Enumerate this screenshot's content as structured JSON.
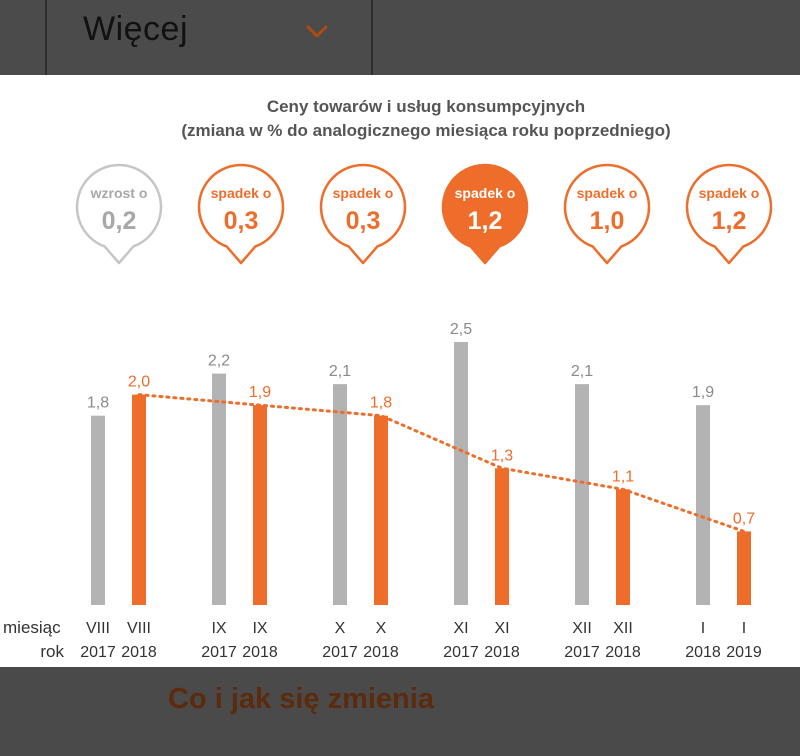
{
  "header": {
    "more_label": "Więcej"
  },
  "footer": {
    "link_label": "Co i jak się zmienia"
  },
  "colors": {
    "gray": "#b3b3b3",
    "orange": "#ee6d2a",
    "gray_text": "#8a8a8a"
  },
  "bubbles": [
    {
      "line1": "wzrost o",
      "value": "0,2",
      "style": "gray"
    },
    {
      "line1": "spadek o",
      "value": "0,3",
      "style": "outline"
    },
    {
      "line1": "spadek o",
      "value": "0,3",
      "style": "outline"
    },
    {
      "line1": "spadek o",
      "value": "1,2",
      "style": "filled"
    },
    {
      "line1": "spadek o",
      "value": "1,0",
      "style": "outline"
    },
    {
      "line1": "spadek o",
      "value": "1,2",
      "style": "outline"
    }
  ],
  "chart_data": {
    "type": "bar",
    "title": "Ceny towarów i usług konsumpcyjnych",
    "subtitle": "(zmiana w % do analogicznego miesiąca roku poprzedniego)",
    "row_labels": [
      "miesiąc",
      "rok"
    ],
    "ylim": [
      0,
      2.7
    ],
    "grid": false,
    "series": [
      {
        "name": "",
        "color": "#b3b3b3",
        "values": [
          1.8,
          2.2,
          2.1,
          2.5,
          2.1,
          1.9
        ],
        "value_labels": [
          "1,8",
          "2,2",
          "2,1",
          "2,5",
          "2,1",
          "1,9"
        ],
        "months": [
          "VIII",
          "IX",
          "X",
          "XI",
          "XII",
          "I"
        ],
        "years": [
          "2017",
          "2017",
          "2017",
          "2017",
          "2017",
          "2018"
        ]
      },
      {
        "name": "",
        "color": "#ee6d2a",
        "values": [
          2.0,
          1.9,
          1.8,
          1.3,
          1.1,
          0.7
        ],
        "value_labels": [
          "2,0",
          "1,9",
          "1,8",
          "1,3",
          "1,1",
          "0,7"
        ],
        "months": [
          "VIII",
          "IX",
          "X",
          "XI",
          "XII",
          "I"
        ],
        "years": [
          "2018",
          "2018",
          "2018",
          "2018",
          "2018",
          "2019"
        ]
      }
    ],
    "trend_line": {
      "series_index": 1,
      "style": "dotted"
    }
  }
}
